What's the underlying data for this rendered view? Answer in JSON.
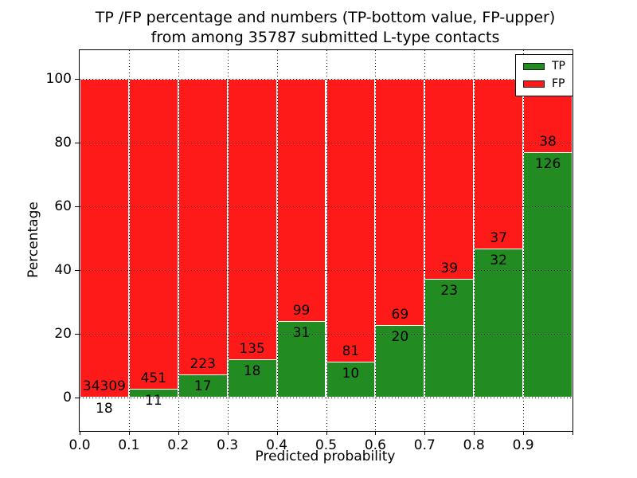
{
  "figure": {
    "title_line1": "TP /FP percentage and numbers (TP-bottom value, FP-upper)",
    "title_line2": "from among 35787 submitted L-type contacts",
    "xlabel": "Predicted probability",
    "ylabel": "Percentage"
  },
  "colors": {
    "tp_green": "#228b22",
    "fp_red": "#ff1a1a",
    "grid": "#000000",
    "frame": "#000000",
    "background": "#ffffff"
  },
  "legend": {
    "position": "upper right",
    "entries": [
      {
        "label": "TP",
        "color": "#228b22"
      },
      {
        "label": "FP",
        "color": "#ff1a1a"
      }
    ]
  },
  "chart_data": {
    "type": "bar",
    "stacked": true,
    "normalized_to_percent": true,
    "title": "TP /FP percentage and numbers (TP-bottom value, FP-upper) from among 35787 submitted L-type contacts",
    "xlabel": "Predicted probability",
    "ylabel": "Percentage",
    "total_submitted": 35787,
    "bin_width": 0.1,
    "bin_starts": [
      0.0,
      0.1,
      0.2,
      0.3,
      0.4,
      0.5,
      0.6,
      0.7,
      0.8,
      0.9
    ],
    "xtick_labels": [
      "0.0",
      "0.1",
      "0.2",
      "0.3",
      "0.4",
      "0.5",
      "0.6",
      "0.7",
      "0.8",
      "0.9"
    ],
    "ytick_values": [
      0,
      20,
      40,
      60,
      80,
      100
    ],
    "ytick_labels": [
      "0",
      "20",
      "40",
      "60",
      "80",
      "100"
    ],
    "xlim": [
      0.0,
      1.0
    ],
    "ylim": [
      -10,
      109
    ],
    "grid": "dotted",
    "legend_position": "upper right",
    "series": [
      {
        "name": "TP",
        "color": "#228b22",
        "counts": [
          18,
          11,
          17,
          18,
          31,
          10,
          20,
          23,
          32,
          126
        ]
      },
      {
        "name": "FP",
        "color": "#ff1a1a",
        "counts": [
          34309,
          451,
          223,
          135,
          99,
          81,
          69,
          39,
          37,
          38
        ]
      }
    ],
    "tp_percent": [
      0.05,
      2.38,
      7.08,
      11.76,
      23.85,
      10.99,
      22.47,
      37.1,
      46.38,
      76.83
    ]
  }
}
